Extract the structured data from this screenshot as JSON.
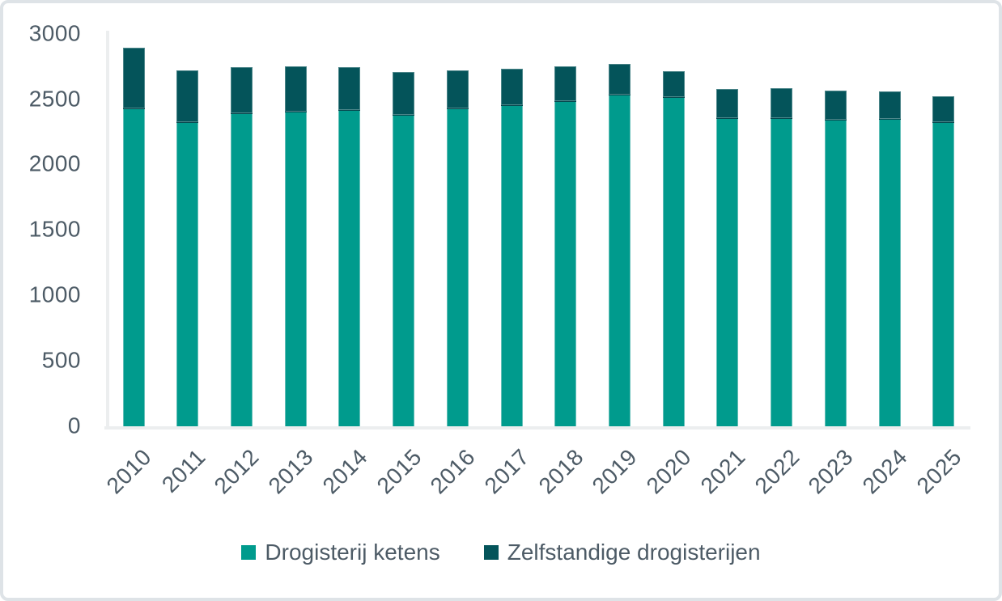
{
  "chart_data": {
    "type": "bar",
    "stacked": true,
    "title": "",
    "xlabel": "",
    "ylabel": "",
    "categories": [
      "2010",
      "2011",
      "2012",
      "2013",
      "2014",
      "2015",
      "2016",
      "2017",
      "2018",
      "2019",
      "2020",
      "2021",
      "2022",
      "2023",
      "2024",
      "2025"
    ],
    "series": [
      {
        "name": "Drogisterij ketens",
        "color": "#009b8d",
        "values": [
          2425,
          2320,
          2385,
          2400,
          2410,
          2375,
          2425,
          2450,
          2480,
          2530,
          2510,
          2350,
          2350,
          2335,
          2340,
          2320
        ]
      },
      {
        "name": "Zelfstandige drogisterijen",
        "color": "#04545a",
        "values": [
          470,
          400,
          360,
          350,
          335,
          330,
          295,
          280,
          270,
          240,
          205,
          230,
          235,
          230,
          220,
          205
        ]
      }
    ],
    "ylim": [
      0,
      3000
    ],
    "yticks": [
      0,
      500,
      1000,
      1500,
      2000,
      2500,
      3000
    ],
    "grid": false,
    "legend_position": "bottom"
  },
  "colors": {
    "series_teal": "#009b8d",
    "series_dark": "#04545a",
    "axis_text": "#4d5b66",
    "axis_line": "#eceeef",
    "frame_border": "#dee3e7",
    "background": "#ffffff"
  }
}
